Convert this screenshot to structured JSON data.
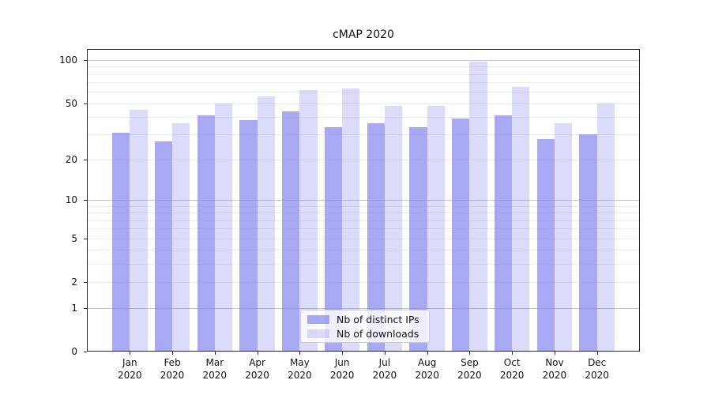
{
  "title": "cMAP 2020",
  "colors": {
    "bar_base": "#8888ee",
    "ips_alpha": 0.72,
    "downloads_alpha": 0.29,
    "grid_major": "#c6c6c6",
    "grid_minor": "#ececec",
    "axis": "#262626"
  },
  "legend": {
    "items": [
      {
        "label": "Nb of distinct IPs",
        "series": "ips"
      },
      {
        "label": "Nb of downloads",
        "series": "downloads"
      }
    ]
  },
  "chart_data": {
    "type": "bar",
    "title": "cMAP 2020",
    "categories": [
      "Jan 2020",
      "Feb 2020",
      "Mar 2020",
      "Apr 2020",
      "May 2020",
      "Jun 2020",
      "Jul 2020",
      "Aug 2020",
      "Sep 2020",
      "Oct 2020",
      "Nov 2020",
      "Dec 2020"
    ],
    "series": [
      {
        "name": "Nb of distinct IPs",
        "values": [
          31,
          27,
          41,
          38,
          44,
          34,
          36,
          34,
          39,
          41,
          28,
          30
        ]
      },
      {
        "name": "Nb of downloads",
        "values": [
          45,
          36,
          50,
          56,
          62,
          63,
          48,
          48,
          97,
          65,
          36,
          50
        ]
      }
    ],
    "xlabel": "",
    "ylabel": "",
    "yscale": "symlog-log1p",
    "ytick_labels": [
      0,
      1,
      2,
      5,
      10,
      20,
      50,
      100
    ],
    "ymajor_gridlines": [
      1,
      10,
      100
    ],
    "ylim": [
      0,
      119.2
    ],
    "grid": "horizontal major+minor",
    "legend_position": "lower center"
  }
}
